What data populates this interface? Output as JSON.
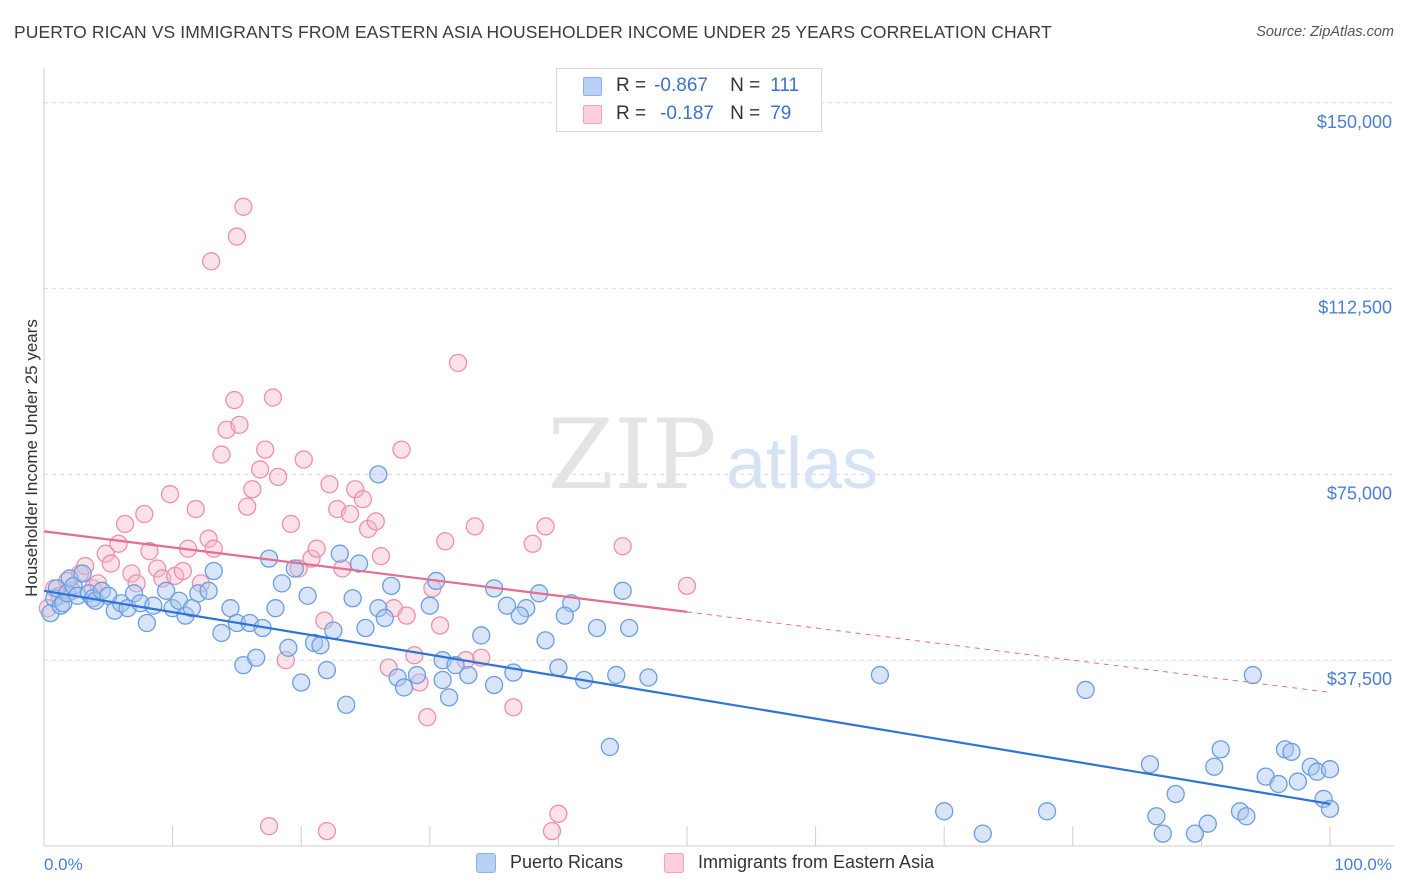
{
  "title": "PUERTO RICAN VS IMMIGRANTS FROM EASTERN ASIA HOUSEHOLDER INCOME UNDER 25 YEARS CORRELATION CHART",
  "source": "Source: ZipAtlas.com",
  "watermark": {
    "zip": "ZIP",
    "atlas": "atlas"
  },
  "legend": {
    "r_label": "R =",
    "n_label": "N =",
    "rows": [
      {
        "r": "-0.867",
        "n": "111",
        "color": "#a8c6f0"
      },
      {
        "r": "-0.187",
        "n": "79",
        "color": "#f6b6c8"
      }
    ]
  },
  "bottom_legend": [
    "Puerto Ricans",
    "Immigrants from Eastern Asia"
  ],
  "chart_data": {
    "type": "scatter",
    "xlabel": "",
    "ylabel": "Householder Income Under 25 years",
    "xlim": [
      0,
      100
    ],
    "ylim": [
      0,
      155000
    ],
    "x_tick_labels": [
      "0.0%",
      "100.0%"
    ],
    "y_ticks": [
      37500,
      75000,
      112500,
      150000
    ],
    "y_tick_labels": [
      "$37,500",
      "$75,000",
      "$112,500",
      "$150,000"
    ],
    "grid": true,
    "legend_position": "top-center",
    "colors": {
      "blue": "#6a9ee0",
      "pink": "#ef8fae",
      "blue_line": "#2f73d6",
      "pink_line": "#e76b92"
    },
    "series": [
      {
        "name": "Puerto Ricans",
        "color": "#6a9ee0",
        "trend": {
          "x": [
            0,
            100
          ],
          "y": [
            51500,
            8500
          ],
          "dashed_from": null
        },
        "points": [
          [
            0.5,
            47000
          ],
          [
            0.8,
            50000
          ],
          [
            1.0,
            52000
          ],
          [
            1.3,
            48500
          ],
          [
            1.5,
            49000
          ],
          [
            1.8,
            51000
          ],
          [
            2.0,
            54000
          ],
          [
            2.3,
            52500
          ],
          [
            2.6,
            50500
          ],
          [
            3.0,
            55000
          ],
          [
            3.5,
            51000
          ],
          [
            3.8,
            50000
          ],
          [
            4.0,
            49500
          ],
          [
            4.5,
            51500
          ],
          [
            5.0,
            50500
          ],
          [
            5.5,
            47500
          ],
          [
            6.0,
            49000
          ],
          [
            6.5,
            48000
          ],
          [
            7.0,
            51000
          ],
          [
            7.5,
            49000
          ],
          [
            8.0,
            45000
          ],
          [
            8.5,
            48500
          ],
          [
            9.5,
            51500
          ],
          [
            10.0,
            48000
          ],
          [
            10.5,
            49500
          ],
          [
            11.0,
            46500
          ],
          [
            11.5,
            48000
          ],
          [
            12.0,
            51000
          ],
          [
            12.8,
            51500
          ],
          [
            13.2,
            55500
          ],
          [
            13.8,
            43000
          ],
          [
            14.5,
            48000
          ],
          [
            15.0,
            45000
          ],
          [
            15.5,
            36500
          ],
          [
            16.0,
            45000
          ],
          [
            16.5,
            38000
          ],
          [
            17.0,
            44000
          ],
          [
            17.5,
            58000
          ],
          [
            18.0,
            48000
          ],
          [
            18.5,
            53000
          ],
          [
            19.0,
            40000
          ],
          [
            19.5,
            56000
          ],
          [
            20.0,
            33000
          ],
          [
            20.5,
            50500
          ],
          [
            21.0,
            41000
          ],
          [
            21.5,
            40500
          ],
          [
            22.0,
            35500
          ],
          [
            22.5,
            43500
          ],
          [
            23.0,
            59000
          ],
          [
            23.5,
            28500
          ],
          [
            24.0,
            50000
          ],
          [
            24.5,
            57000
          ],
          [
            25.0,
            44000
          ],
          [
            26.0,
            48000
          ],
          [
            26.5,
            46000
          ],
          [
            27.0,
            52500
          ],
          [
            27.5,
            34000
          ],
          [
            28.0,
            32000
          ],
          [
            29.0,
            34500
          ],
          [
            30.0,
            48500
          ],
          [
            30.5,
            53500
          ],
          [
            31.0,
            37500
          ],
          [
            31.5,
            30000
          ],
          [
            32.0,
            36500
          ],
          [
            33.0,
            34500
          ],
          [
            34.0,
            42500
          ],
          [
            35.0,
            52000
          ],
          [
            36.0,
            48500
          ],
          [
            36.5,
            35000
          ],
          [
            37.5,
            48000
          ],
          [
            38.5,
            51000
          ],
          [
            39.0,
            41500
          ],
          [
            40.0,
            36000
          ],
          [
            41.0,
            49000
          ],
          [
            42.0,
            33500
          ],
          [
            43.0,
            44000
          ],
          [
            44.0,
            20000
          ],
          [
            44.5,
            34500
          ],
          [
            45.0,
            51500
          ],
          [
            45.5,
            44000
          ],
          [
            47.0,
            34000
          ],
          [
            26.0,
            75000
          ],
          [
            35.0,
            32500
          ],
          [
            31.0,
            33500
          ],
          [
            37.0,
            46500
          ],
          [
            40.5,
            46500
          ],
          [
            70.0,
            7000
          ],
          [
            65.0,
            34500
          ],
          [
            73.0,
            2500
          ],
          [
            78.0,
            7000
          ],
          [
            81.0,
            31500
          ],
          [
            86.0,
            16500
          ],
          [
            86.5,
            6000
          ],
          [
            87.0,
            2500
          ],
          [
            88.0,
            10500
          ],
          [
            89.5,
            2500
          ],
          [
            90.5,
            4500
          ],
          [
            91.0,
            16000
          ],
          [
            91.5,
            19500
          ],
          [
            93.0,
            7000
          ],
          [
            93.5,
            6000
          ],
          [
            94.0,
            34500
          ],
          [
            95.0,
            14000
          ],
          [
            96.0,
            12500
          ],
          [
            96.5,
            19500
          ],
          [
            97.0,
            19000
          ],
          [
            97.5,
            13000
          ],
          [
            98.5,
            16000
          ],
          [
            99.0,
            15000
          ],
          [
            99.5,
            9500
          ],
          [
            100.0,
            7500
          ],
          [
            100.0,
            15500
          ]
        ]
      },
      {
        "name": "Immigrants from Eastern Asia",
        "color": "#ef8fae",
        "trend": {
          "x": [
            0,
            100
          ],
          "y": [
            63500,
            31000
          ],
          "dashed_from": 50
        },
        "points": [
          [
            0.3,
            48000
          ],
          [
            0.8,
            52000
          ],
          [
            1.2,
            50500
          ],
          [
            1.8,
            53500
          ],
          [
            2.2,
            51500
          ],
          [
            2.8,
            55000
          ],
          [
            3.2,
            56500
          ],
          [
            3.8,
            52000
          ],
          [
            4.2,
            53000
          ],
          [
            4.8,
            59000
          ],
          [
            5.2,
            57000
          ],
          [
            5.8,
            61000
          ],
          [
            6.3,
            65000
          ],
          [
            6.8,
            55000
          ],
          [
            7.2,
            53000
          ],
          [
            7.8,
            67000
          ],
          [
            8.2,
            59500
          ],
          [
            8.8,
            56000
          ],
          [
            9.2,
            54000
          ],
          [
            9.8,
            71000
          ],
          [
            10.2,
            54500
          ],
          [
            10.8,
            55500
          ],
          [
            11.2,
            60000
          ],
          [
            11.8,
            68000
          ],
          [
            12.2,
            53000
          ],
          [
            12.8,
            62000
          ],
          [
            13.2,
            60000
          ],
          [
            13.8,
            79000
          ],
          [
            14.2,
            84000
          ],
          [
            14.8,
            90000
          ],
          [
            15.2,
            85000
          ],
          [
            15.8,
            68500
          ],
          [
            16.2,
            72000
          ],
          [
            16.8,
            76000
          ],
          [
            17.2,
            80000
          ],
          [
            17.8,
            90500
          ],
          [
            18.2,
            74500
          ],
          [
            18.8,
            37500
          ],
          [
            19.2,
            65000
          ],
          [
            19.8,
            56000
          ],
          [
            20.2,
            78000
          ],
          [
            20.8,
            58000
          ],
          [
            21.2,
            60000
          ],
          [
            21.8,
            45500
          ],
          [
            22.2,
            73000
          ],
          [
            22.8,
            68000
          ],
          [
            23.2,
            56000
          ],
          [
            23.8,
            67000
          ],
          [
            24.2,
            72000
          ],
          [
            24.8,
            70000
          ],
          [
            25.2,
            64000
          ],
          [
            25.8,
            65500
          ],
          [
            26.2,
            58500
          ],
          [
            26.8,
            36000
          ],
          [
            27.2,
            48000
          ],
          [
            27.8,
            80000
          ],
          [
            28.2,
            46500
          ],
          [
            28.8,
            38500
          ],
          [
            29.2,
            33000
          ],
          [
            29.8,
            26000
          ],
          [
            30.2,
            52000
          ],
          [
            30.8,
            44500
          ],
          [
            31.2,
            61500
          ],
          [
            32.2,
            97500
          ],
          [
            32.8,
            37500
          ],
          [
            33.5,
            64500
          ],
          [
            34.0,
            38000
          ],
          [
            38.0,
            61000
          ],
          [
            39.0,
            64500
          ],
          [
            40.0,
            6500
          ],
          [
            45.0,
            60500
          ],
          [
            13.0,
            118000
          ],
          [
            15.0,
            123000
          ],
          [
            15.5,
            129000
          ],
          [
            17.5,
            4000
          ],
          [
            22.0,
            3000
          ],
          [
            39.5,
            3000
          ],
          [
            36.5,
            28000
          ],
          [
            50.0,
            52500
          ]
        ]
      }
    ]
  }
}
